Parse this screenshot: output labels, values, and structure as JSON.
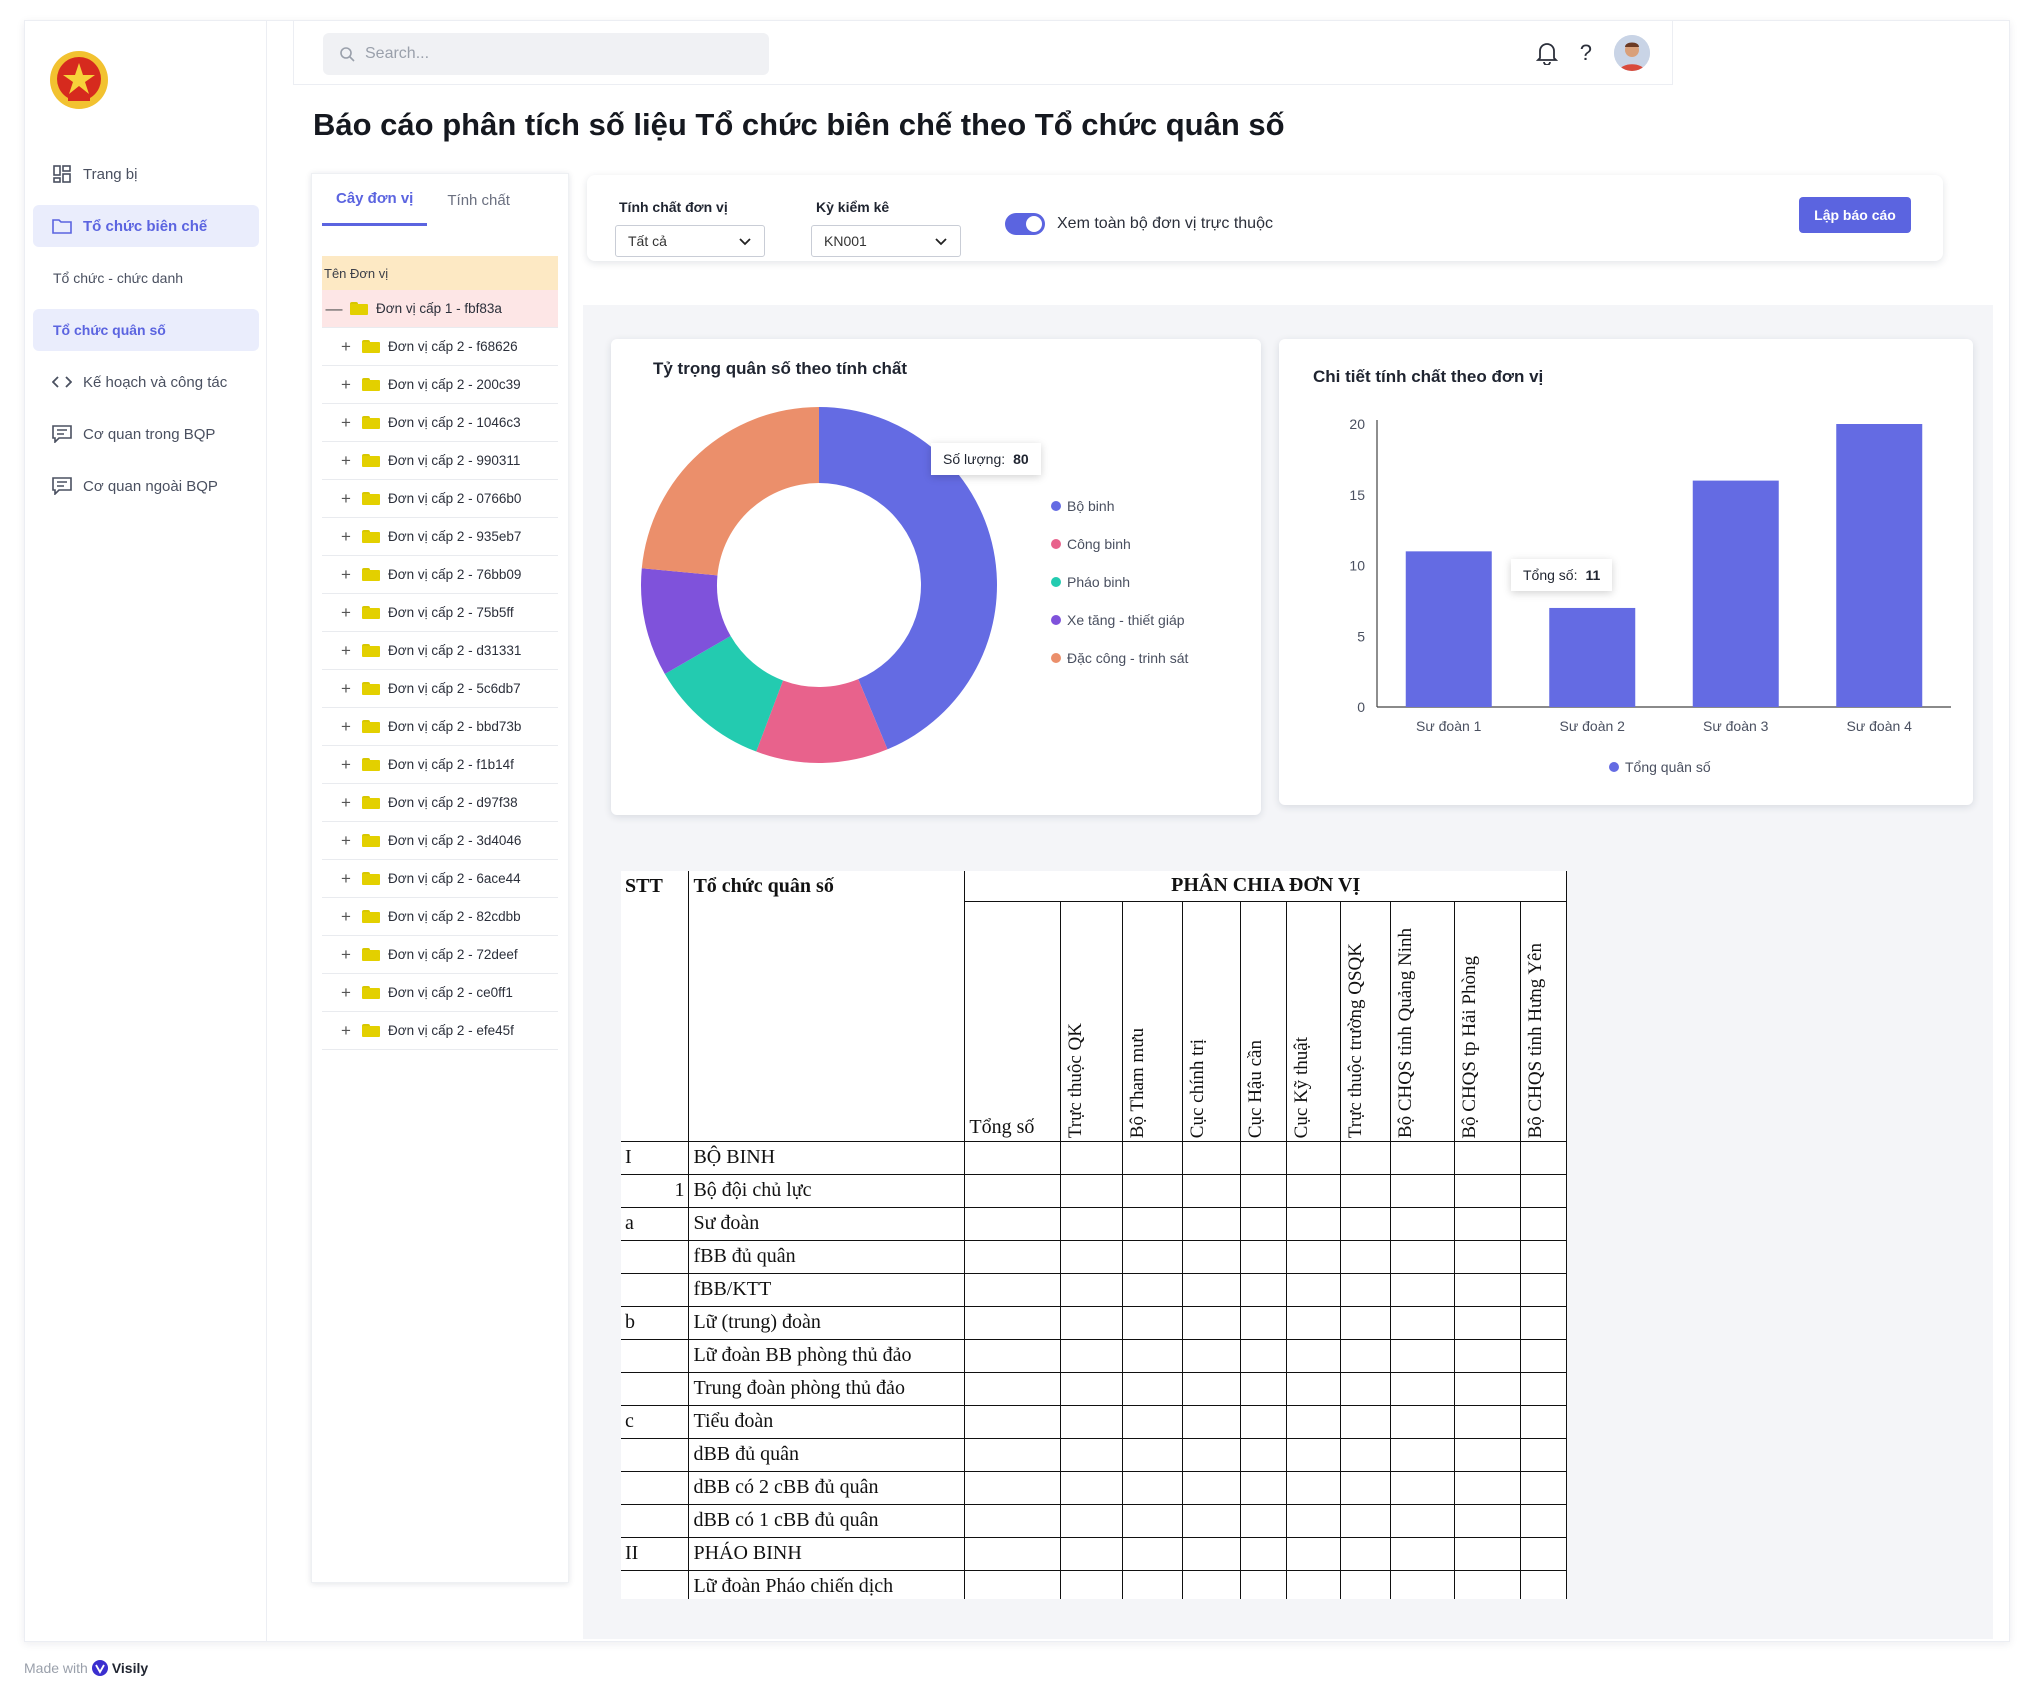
{
  "sidebar": {
    "items": [
      {
        "label": "Trang bị",
        "icon": "dashboard-icon"
      },
      {
        "label": "Tổ chức biên chế",
        "icon": "folder-icon"
      },
      {
        "label": "Tổ chức - chức danh",
        "icon": ""
      },
      {
        "label": "Tổ chức quân số",
        "icon": ""
      },
      {
        "label": "Kế hoạch và công tác",
        "icon": "code-icon"
      },
      {
        "label": "Cơ quan trong BQP",
        "icon": "chat-icon"
      },
      {
        "label": "Cơ quan ngoài BQP",
        "icon": "chat-icon"
      }
    ]
  },
  "topbar": {
    "search_placeholder": "Search..."
  },
  "page": {
    "title": "Báo cáo phân tích số liệu Tổ chức biên chế theo Tổ chức quân số"
  },
  "tree": {
    "tabs": [
      "Cây đơn vị",
      "Tính chất"
    ],
    "header": "Tên Đơn vị",
    "root": "Đơn vị cấp 1 - fbf83a",
    "children": [
      "Đơn vị cấp 2 - f68626",
      "Đơn vị cấp 2 - 200c39",
      "Đơn vị cấp 2 - 1046c3",
      "Đơn vị cấp 2 - 990311",
      "Đơn vị cấp 2 - 0766b0",
      "Đơn vị cấp 2 - 935eb7",
      "Đơn vị cấp 2 - 76bb09",
      "Đơn vị cấp 2 - 75b5ff",
      "Đơn vị cấp 2 - d31331",
      "Đơn vị cấp 2 - 5c6db7",
      "Đơn vị cấp 2 - bbd73b",
      "Đơn vị cấp 2 - f1b14f",
      "Đơn vị cấp 2 - d97f38",
      "Đơn vị cấp 2 - 3d4046",
      "Đơn vị cấp 2 - 6ace44",
      "Đơn vị cấp 2 - 82cdbb",
      "Đơn vị cấp 2 - 72deef",
      "Đơn vị cấp 2 - ce0ff1",
      "Đơn vị cấp 2 - efe45f"
    ]
  },
  "filters": {
    "nature_label": "Tính chất đơn vị",
    "nature_value": "Tất cả",
    "period_label": "Kỳ kiểm kê",
    "period_value": "KN001",
    "toggle_label": "Xem toàn bộ đơn vị trực thuộc",
    "toggle_on": true,
    "report_button": "Lập báo cáo"
  },
  "pie_card": {
    "title": "Tỷ trọng quân số theo tính chất",
    "tooltip_label": "Số lượng:",
    "tooltip_value": "80"
  },
  "bar_card": {
    "title": "Chi tiết  tính chất theo đơn vị",
    "tooltip_label": "Tổng số:",
    "tooltip_value": "11"
  },
  "chart_data": [
    {
      "type": "pie",
      "title": "Tỷ trọng quân số theo tính chất",
      "donut": true,
      "categories": [
        "Bộ binh",
        "Công binh",
        "Pháo binh",
        "Xe tăng - thiết giáp",
        "Đặc công - trinh sát"
      ],
      "values": [
        80,
        22,
        20,
        18,
        43
      ],
      "colors": [
        "#646be3",
        "#e8628c",
        "#23cbb0",
        "#7f52db",
        "#eb8f6b"
      ],
      "legend": "right"
    },
    {
      "type": "bar",
      "title": "Chi tiết  tính chất theo đơn vị",
      "categories": [
        "Sư đoàn 1",
        "Sư đoàn 2",
        "Sư đoàn 3",
        "Sư đoàn 4"
      ],
      "series": [
        {
          "name": "Tổng quân số",
          "values": [
            11,
            7,
            16,
            20
          ]
        }
      ],
      "yticks": [
        0,
        5,
        10,
        15,
        20
      ],
      "ylim": [
        0,
        20
      ],
      "color": "#646be3",
      "legend": "bottom"
    }
  ],
  "report": {
    "col_stt": "STT",
    "col_org": "Tổ chức quân số",
    "col_group": "PHÂN CHIA ĐƠN VỊ",
    "sub_cols": [
      "Tổng số",
      "Trực thuộc QK",
      "Bộ Tham mưu",
      "Cục chính trị",
      "Cục Hậu cần",
      "Cục Kỹ thuật",
      "Trực thuộc trường QSQK",
      "Bộ CHQS tỉnh Quảng Ninh",
      "Bộ CHQS tp Hải Phòng",
      "Bộ CHQS tỉnh Hưng Yên"
    ],
    "rows": [
      {
        "stt": "I",
        "name": "BỘ BINH"
      },
      {
        "stt": "1",
        "name": "Bộ đội chủ lực"
      },
      {
        "stt": "a",
        "name": "Sư đoàn"
      },
      {
        "stt": "",
        "name": "fBB đủ quân"
      },
      {
        "stt": "",
        "name": "fBB/KTT"
      },
      {
        "stt": "b",
        "name": "Lữ (trung) đoàn"
      },
      {
        "stt": "",
        "name": "Lữ đoàn BB phòng thủ đảo"
      },
      {
        "stt": "",
        "name": "Trung đoàn phòng thủ đảo"
      },
      {
        "stt": "c",
        "name": "Tiểu đoàn"
      },
      {
        "stt": "",
        "name": "dBB đủ quân"
      },
      {
        "stt": "",
        "name": "dBB có 2 cBB đủ quân"
      },
      {
        "stt": "",
        "name": "dBB có 1 cBB đủ quân"
      },
      {
        "stt": "II",
        "name": "PHÁO BINH"
      },
      {
        "stt": "",
        "name": "Lữ đoàn Pháo chiến dịch"
      }
    ]
  },
  "footer": {
    "made_with": "Made with",
    "brand": "Visily"
  }
}
